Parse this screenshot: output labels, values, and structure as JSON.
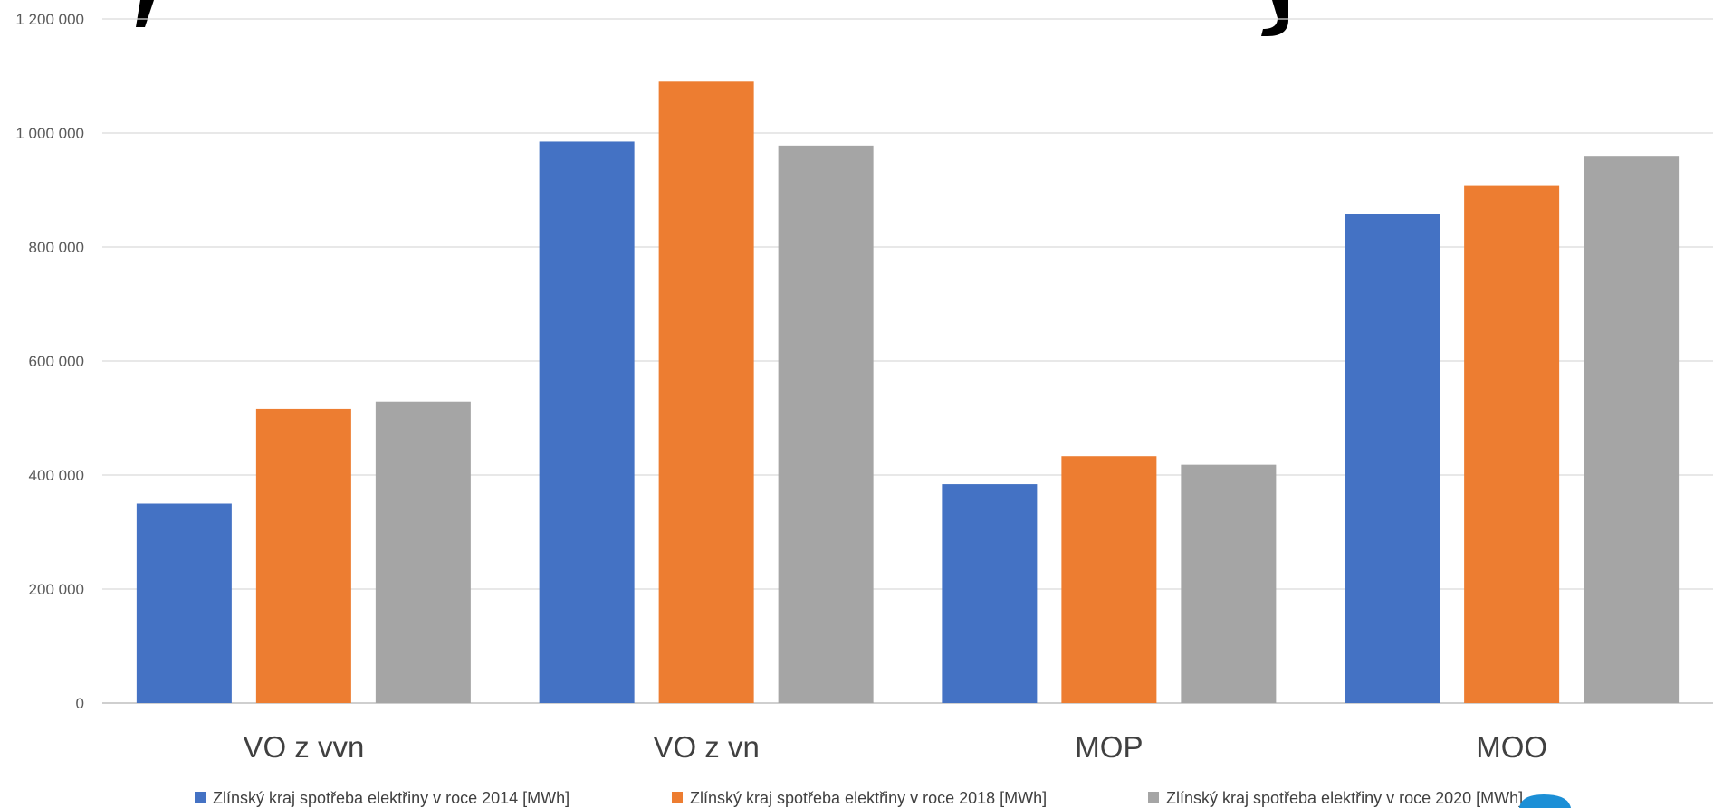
{
  "chart_data": {
    "type": "bar",
    "categories": [
      "VO z vvn",
      "VO z vn",
      "MOP",
      "MOO"
    ],
    "series": [
      {
        "name": "Zlínský kraj spotřeba elektřiny v roce  2014 [MWh]",
        "color": "#4472c4",
        "values": [
          350000,
          985000,
          384000,
          858000
        ]
      },
      {
        "name": "Zlínský kraj spotřeba elektřiny v roce  2018 [MWh]",
        "color": "#ed7d31",
        "values": [
          516000,
          1090000,
          433000,
          907000
        ]
      },
      {
        "name": "Zlínský kraj spotřeba elektřiny v roce  2020 [MWh]",
        "color": "#a5a5a5",
        "values": [
          529000,
          978000,
          418000,
          960000
        ]
      }
    ],
    "yticks": [
      0,
      200000,
      400000,
      600000,
      800000,
      1000000,
      1200000
    ],
    "ytick_labels": [
      "0",
      "200 000",
      "400 000",
      "600 000",
      "800 000",
      "1 000 000",
      "1 200 000"
    ],
    "ylim": [
      0,
      1200000
    ],
    "grid": true,
    "legend": "bottom"
  }
}
